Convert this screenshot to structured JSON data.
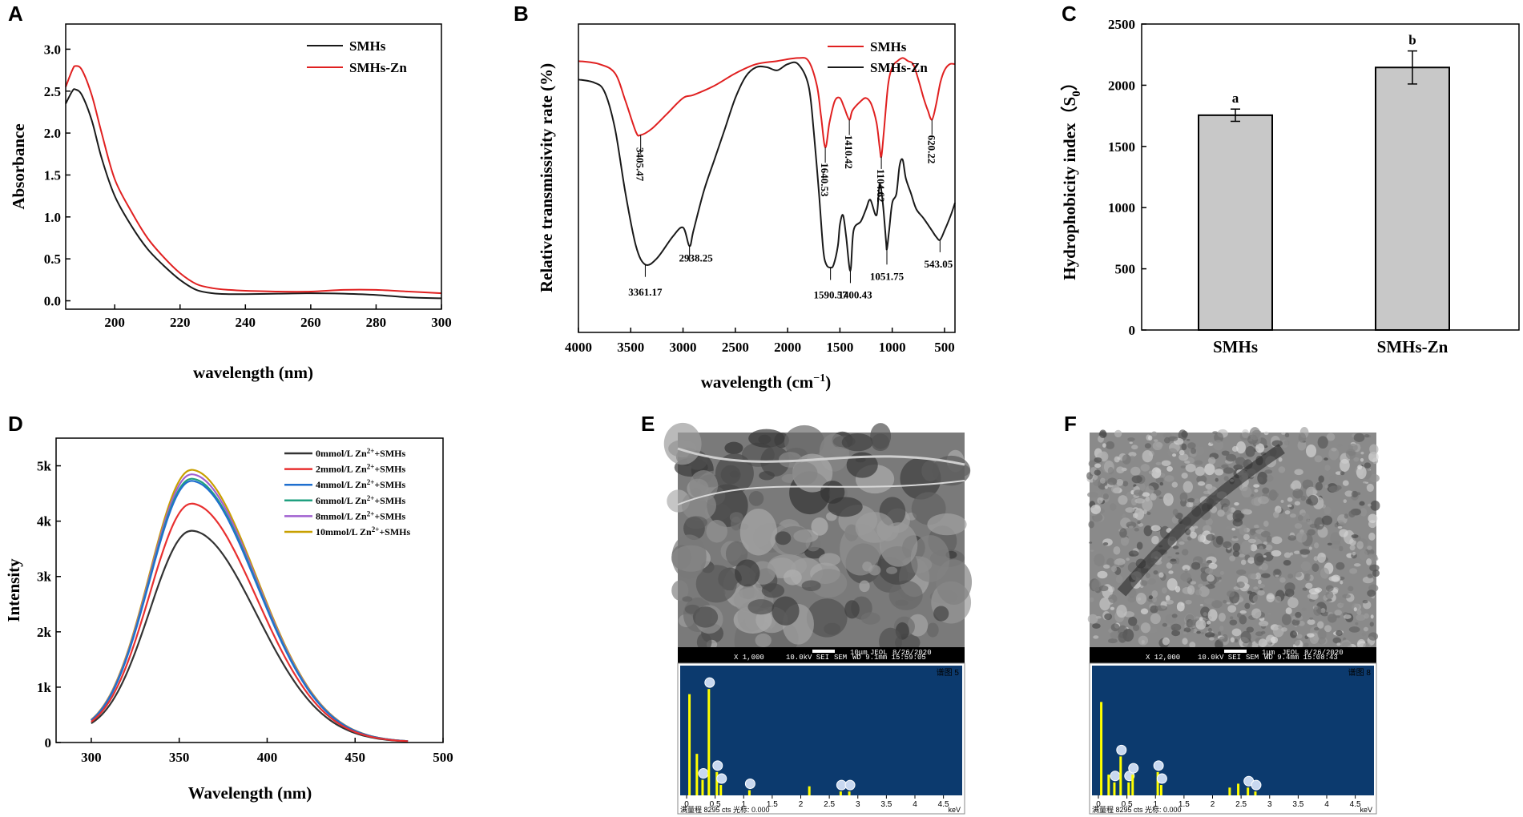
{
  "panels": {
    "A": "A",
    "B": "B",
    "C": "C",
    "D": "D",
    "E": "E",
    "F": "F"
  },
  "colors": {
    "smhs": "#1a1a1a",
    "smhs_zn": "#e02020",
    "bar_fill": "#c8c8c8",
    "edx_bg": "#0c3a6e",
    "edx_peaks": "#ffff00",
    "d_series": [
      "#333333",
      "#e83030",
      "#1f6fcf",
      "#20a080",
      "#a060d0",
      "#c8a000"
    ]
  },
  "sem": {
    "E": {
      "meta": [
        "X 1,000",
        "10.0kV SEI",
        "SEM",
        "WD 9.1mm 15:59:05"
      ],
      "scale": "10μm",
      "brand": "JEOL",
      "date": "8/26/2020",
      "spectrum_label": "谱图 5",
      "axis_ticks": [
        "0",
        "0.5",
        "1",
        "1.5",
        "2",
        "2.5",
        "3",
        "3.5",
        "4",
        "4.5"
      ],
      "unit": "keV",
      "footer": "满量程 8295 cts 光标: 0.000"
    },
    "F": {
      "meta": [
        "X 12,000",
        "10.0kV SEI",
        "SEM",
        "WD 9.4mm 15:08:43"
      ],
      "scale": "1μm",
      "brand": "JEOL",
      "date": "8/26/2020",
      "spectrum_label": "谱图 8",
      "axis_ticks": [
        "0",
        "0.5",
        "1",
        "1.5",
        "2",
        "2.5",
        "3",
        "3.5",
        "4",
        "4.5"
      ],
      "unit": "keV",
      "footer": "满量程 8295 cts 光标: 0.000"
    }
  },
  "chart_data": [
    {
      "panel": "A",
      "type": "line",
      "title": "",
      "xlabel": "wavelength (nm)",
      "ylabel": "Absorbance",
      "xlim": [
        185,
        300
      ],
      "ylim": [
        -0.1,
        3.3
      ],
      "xticks": [
        "200",
        "220",
        "240",
        "260",
        "280",
        "300"
      ],
      "yticks": [
        "0.0",
        "0.5",
        "1.0",
        "1.5",
        "2.0",
        "2.5",
        "3.0"
      ],
      "legend": "top-right",
      "series": [
        {
          "name": "SMHs",
          "x": [
            185,
            187,
            188,
            190,
            193,
            196,
            200,
            205,
            210,
            215,
            220,
            225,
            230,
            235,
            240,
            250,
            260,
            270,
            280,
            290,
            300
          ],
          "y": [
            2.35,
            2.5,
            2.52,
            2.45,
            2.15,
            1.7,
            1.25,
            0.9,
            0.62,
            0.42,
            0.25,
            0.13,
            0.09,
            0.08,
            0.08,
            0.085,
            0.09,
            0.085,
            0.07,
            0.04,
            0.03
          ]
        },
        {
          "name": "SMHs-Zn",
          "x": [
            185,
            187,
            188,
            190,
            193,
            196,
            200,
            205,
            210,
            215,
            220,
            225,
            230,
            235,
            240,
            250,
            260,
            270,
            280,
            290,
            300
          ],
          "y": [
            2.55,
            2.75,
            2.8,
            2.75,
            2.45,
            2.0,
            1.45,
            1.07,
            0.75,
            0.52,
            0.33,
            0.2,
            0.15,
            0.13,
            0.12,
            0.11,
            0.11,
            0.13,
            0.13,
            0.11,
            0.09
          ]
        }
      ]
    },
    {
      "panel": "B",
      "type": "line",
      "title": "",
      "xlabel": "wavelength (cm",
      "xlabel_sup": "−1",
      "xlabel_end": ")",
      "ylabel": "Relative transmissivity rate (%)",
      "xlim": [
        4000,
        400
      ],
      "ylim": [
        0,
        100
      ],
      "xticks": [
        "4000",
        "3500",
        "3000",
        "2500",
        "2000",
        "1500",
        "1000",
        "500"
      ],
      "legend": "top-right",
      "series": [
        {
          "name": "SMHs",
          "x": [
            4000,
            3800,
            3650,
            3550,
            3450,
            3405,
            3300,
            3150,
            3000,
            2900,
            2700,
            2500,
            2300,
            2100,
            1900,
            1800,
            1720,
            1680,
            1640,
            1600,
            1550,
            1500,
            1460,
            1410,
            1380,
            1300,
            1250,
            1200,
            1150,
            1120,
            1104,
            1080,
            1040,
            1000,
            950,
            900,
            850,
            800,
            750,
            700,
            660,
            620,
            580,
            540,
            500,
            450,
            400
          ],
          "y": [
            88,
            87,
            84,
            75,
            65,
            64,
            66,
            71,
            76,
            77,
            80,
            84,
            87,
            88,
            89,
            88,
            80,
            70,
            60,
            68,
            75,
            76,
            73,
            69,
            72,
            75,
            76,
            74,
            68,
            60,
            57,
            65,
            80,
            86,
            88,
            89,
            88,
            87,
            82,
            76,
            72,
            69,
            74,
            81,
            85,
            87,
            87
          ]
        },
        {
          "name": "SMHs-Zn",
          "x": [
            4000,
            3850,
            3750,
            3650,
            3550,
            3450,
            3361,
            3250,
            3100,
            3000,
            2938,
            2900,
            2800,
            2700,
            2600,
            2500,
            2400,
            2300,
            2200,
            2100,
            2000,
            1900,
            1800,
            1750,
            1700,
            1660,
            1630,
            1590,
            1560,
            1520,
            1500,
            1470,
            1440,
            1400,
            1370,
            1300,
            1250,
            1210,
            1150,
            1120,
            1090,
            1060,
            1051,
            1030,
            1000,
            960,
            930,
            900,
            870,
            820,
            770,
            700,
            620,
            580,
            543,
            500,
            440,
            400
          ],
          "y": [
            82,
            81,
            78,
            66,
            45,
            28,
            22,
            24,
            31,
            34,
            28,
            33,
            46,
            56,
            66,
            76,
            83,
            86,
            86,
            85,
            87,
            87,
            80,
            65,
            45,
            27,
            22,
            21,
            22,
            28,
            35,
            38,
            31,
            20,
            33,
            36,
            40,
            43,
            38,
            48,
            42,
            30,
            27,
            33,
            42,
            45,
            54,
            56,
            50,
            45,
            40,
            37,
            33,
            31,
            30,
            33,
            38,
            42
          ]
        }
      ],
      "annotations": [
        "3405.47",
        "3361.17",
        "2938.25",
        "1640.53",
        "1590.57",
        "1410.42",
        "1400.43",
        "1104.62",
        "1051.75",
        "620.22",
        "543.05"
      ]
    },
    {
      "panel": "C",
      "type": "bar",
      "title": "",
      "xlabel": "",
      "ylabel": "Hydrophobicity index（S",
      "ylabel_sub": "0",
      "ylabel_end": "）",
      "ylim": [
        0,
        2500
      ],
      "yticks": [
        "0",
        "500",
        "1000",
        "1500",
        "2000",
        "2500"
      ],
      "categories": [
        "SMHs",
        "SMHs-Zn"
      ],
      "values": [
        1755,
        2145
      ],
      "errors": [
        50,
        135
      ],
      "labels": [
        "a",
        "b"
      ]
    },
    {
      "panel": "D",
      "type": "line",
      "title": "",
      "xlabel": "Wavelength (nm)",
      "ylabel": "Intensity",
      "xlim": [
        280,
        500
      ],
      "ylim": [
        0,
        5500
      ],
      "xticks": [
        "300",
        "350",
        "400",
        "450",
        "500"
      ],
      "yticks": [
        "0",
        "1k",
        "2k",
        "3k",
        "4k",
        "5k"
      ],
      "legend": "top-right",
      "legend_entries": [
        {
          "pre": "0mmol/L Zn",
          "sup": "2+",
          "post": "+SMHs"
        },
        {
          "pre": "2mmol/L Zn",
          "sup": "2+",
          "post": "+SMHs"
        },
        {
          "pre": "4mmol/L Zn",
          "sup": "2+",
          "post": "+SMHs"
        },
        {
          "pre": "6mmol/L Zn",
          "sup": "2+",
          "post": "+SMHs"
        },
        {
          "pre": "8mmol/L Zn",
          "sup": "2+",
          "post": "+SMHs"
        },
        {
          "pre": "10mmol/L Zn",
          "sup": "2+",
          "post": "+SMHs"
        }
      ],
      "series_peaks": [
        3780,
        4270,
        4680,
        4720,
        4800,
        4880
      ],
      "peak_x": 357
    }
  ]
}
